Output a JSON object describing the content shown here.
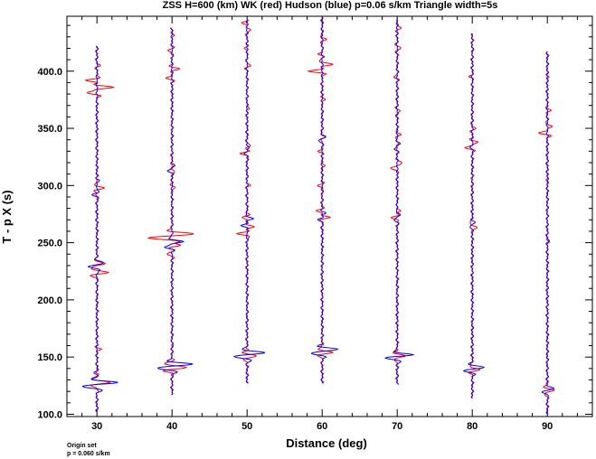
{
  "chart_data": {
    "type": "line",
    "title": "ZSS H=600 (km) WK (red) Hudson (blue) p=0.06 s/km Triangle width=5s",
    "xlabel": "Distance (deg)",
    "ylabel": "T - p X (s)",
    "xlim": [
      26,
      96
    ],
    "ylim": [
      98,
      448
    ],
    "x_ticks": [
      30,
      40,
      50,
      60,
      70,
      80,
      90
    ],
    "x_tick_labels": [
      "30",
      "40",
      "50",
      "60",
      "70",
      "80",
      "90"
    ],
    "y_ticks": [
      100,
      150,
      200,
      250,
      300,
      350,
      400
    ],
    "y_tick_labels": [
      "100.0",
      "150.0",
      "200.0",
      "250.0",
      "300.0",
      "350.0",
      "400.0"
    ],
    "grid": false,
    "series": [
      {
        "name": "WK",
        "color": "#ff0000",
        "traces": [
          {
            "distance": 30,
            "t_start": 102,
            "t_end": 422,
            "events": [
              [
                128,
                1.6,
                2.5
              ],
              [
                157,
                0.5,
                1.5
              ],
              [
                224,
                1.4,
                3
              ],
              [
                232,
                1.0,
                2
              ],
              [
                298,
                1.0,
                2.5
              ],
              [
                381,
                -1.2,
                2
              ],
              [
                386,
                2.0,
                2
              ],
              [
                392,
                -1.5,
                2
              ],
              [
                405,
                0.4,
                2
              ]
            ]
          },
          {
            "distance": 40,
            "t_start": 117,
            "t_end": 438,
            "events": [
              [
                141,
                1.8,
                3
              ],
              [
                160,
                0.3,
                2
              ],
              [
                240,
                -0.8,
                2.5
              ],
              [
                248,
                1.2,
                2
              ],
              [
                254,
                -3.0,
                2.5
              ],
              [
                258,
                2.0,
                2
              ],
              [
                298,
                0.5,
                2.5
              ],
              [
                312,
                0.5,
                2
              ],
              [
                394,
                -0.8,
                2
              ],
              [
                402,
                1.0,
                2
              ],
              [
                418,
                -0.5,
                2
              ],
              [
                431,
                0.4,
                2
              ]
            ]
          },
          {
            "distance": 50,
            "t_start": 127,
            "t_end": 445,
            "events": [
              [
                151,
                1.4,
                2.5
              ],
              [
                258,
                -1.2,
                2
              ],
              [
                264,
                1.0,
                2
              ],
              [
                272,
                -0.6,
                2
              ],
              [
                300,
                0.4,
                2
              ],
              [
                328,
                -0.8,
                2
              ],
              [
                335,
                0.5,
                2
              ],
              [
                368,
                0.4,
                2
              ],
              [
                405,
                0.5,
                2
              ],
              [
                420,
                -0.4,
                2
              ],
              [
                436,
                0.5,
                2
              ],
              [
                442,
                -0.8,
                2
              ]
            ]
          },
          {
            "distance": 60,
            "t_start": 127,
            "t_end": 447,
            "events": [
              [
                154,
                1.3,
                2.5
              ],
              [
                272,
                1.0,
                2
              ],
              [
                278,
                -0.6,
                2
              ],
              [
                300,
                -0.5,
                2
              ],
              [
                318,
                0.4,
                2
              ],
              [
                330,
                -0.6,
                2
              ],
              [
                342,
                0.4,
                2
              ],
              [
                375,
                0.5,
                2
              ],
              [
                400,
                -1.8,
                2
              ],
              [
                406,
                1.3,
                2
              ],
              [
                415,
                -0.5,
                2
              ],
              [
                428,
                0.4,
                2
              ]
            ]
          },
          {
            "distance": 70,
            "t_start": 126,
            "t_end": 445,
            "events": [
              [
                151,
                1.2,
                2.5
              ],
              [
                272,
                -0.7,
                2
              ],
              [
                278,
                0.5,
                2
              ],
              [
                315,
                -1.0,
                2
              ],
              [
                320,
                0.8,
                2
              ],
              [
                345,
                0.4,
                2
              ],
              [
                365,
                0.3,
                2
              ],
              [
                395,
                -0.4,
                2
              ],
              [
                420,
                0.5,
                2
              ],
              [
                438,
                0.7,
                2
              ]
            ]
          },
          {
            "distance": 80,
            "t_start": 114,
            "t_end": 433,
            "events": [
              [
                139,
                1.0,
                2.5
              ],
              [
                263,
                0.8,
                2
              ],
              [
                268,
                -0.4,
                2
              ],
              [
                333,
                -0.8,
                2
              ],
              [
                338,
                0.6,
                2
              ],
              [
                350,
                0.4,
                2
              ],
              [
                395,
                -0.3,
                2
              ],
              [
                418,
                0.3,
                2
              ]
            ]
          },
          {
            "distance": 90,
            "t_start": 100,
            "t_end": 417,
            "events": [
              [
                121,
                0.8,
                2.5
              ],
              [
                250,
                0.3,
                2
              ],
              [
                346,
                -1.1,
                2
              ],
              [
                352,
                0.6,
                2
              ],
              [
                366,
                0.4,
                2
              ],
              [
                395,
                0.2,
                2
              ]
            ]
          }
        ]
      },
      {
        "name": "Hudson",
        "color": "#0000ff",
        "traces": [
          {
            "distance": 30,
            "t_start": 102,
            "t_end": 422,
            "events": [
              [
                124,
                -1.6,
                2.5
              ],
              [
                128,
                2.3,
                2
              ],
              [
                136,
                -0.3,
                2.5
              ],
              [
                229,
                -1.0,
                2.5
              ],
              [
                233,
                0.6,
                2
              ],
              [
                292,
                -0.6,
                2.5
              ],
              [
                304,
                0.4,
                2
              ]
            ]
          },
          {
            "distance": 40,
            "t_start": 117,
            "t_end": 438,
            "events": [
              [
                140,
                -1.7,
                2.5
              ],
              [
                144,
                2.3,
                2
              ],
              [
                246,
                -1.0,
                2
              ],
              [
                251,
                1.4,
                2
              ],
              [
                313,
                -0.6,
                2
              ],
              [
                318,
                0.4,
                2
              ]
            ]
          },
          {
            "distance": 50,
            "t_start": 127,
            "t_end": 445,
            "events": [
              [
                150,
                -1.3,
                2.5
              ],
              [
                154,
                2.0,
                2
              ],
              [
                265,
                -0.8,
                2
              ],
              [
                271,
                0.8,
                2
              ],
              [
                328,
                -0.4,
                2
              ],
              [
                333,
                0.3,
                2
              ]
            ]
          },
          {
            "distance": 60,
            "t_start": 127,
            "t_end": 447,
            "events": [
              [
                153,
                -1.2,
                2.5
              ],
              [
                157,
                1.8,
                2
              ],
              [
                270,
                -0.5,
                2
              ],
              [
                276,
                0.5,
                2
              ],
              [
                339,
                -0.4,
                2
              ],
              [
                343,
                0.3,
                2
              ]
            ]
          },
          {
            "distance": 70,
            "t_start": 126,
            "t_end": 445,
            "events": [
              [
                149,
                -1.1,
                2.5
              ],
              [
                152,
                1.6,
                2
              ],
              [
                270,
                -0.4,
                2
              ],
              [
                275,
                0.4,
                2
              ],
              [
                332,
                -0.3,
                2
              ],
              [
                337,
                0.3,
                2
              ]
            ]
          },
          {
            "distance": 80,
            "t_start": 114,
            "t_end": 433,
            "events": [
              [
                138,
                -0.8,
                2.5
              ],
              [
                141,
                1.2,
                2
              ],
              [
                264,
                -0.3,
                2
              ],
              [
                268,
                0.3,
                2
              ],
              [
                334,
                -0.3,
                2
              ]
            ]
          },
          {
            "distance": 90,
            "t_start": 100,
            "t_end": 417,
            "events": [
              [
                119,
                -0.6,
                2.5
              ],
              [
                123,
                0.8,
                2
              ],
              [
                252,
                0.2,
                2
              ],
              [
                305,
                0.2,
                2
              ]
            ]
          }
        ]
      }
    ]
  },
  "footer": {
    "line1": "Origin set",
    "line2": "p = 0.060 s/km"
  }
}
